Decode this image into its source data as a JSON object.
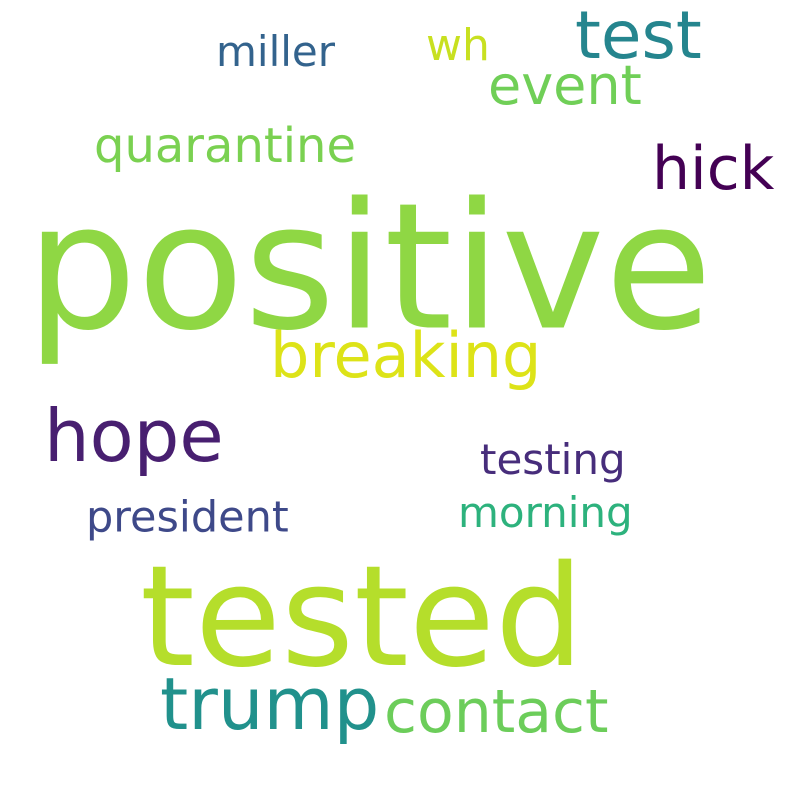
{
  "words": [
    {
      "key": "positive",
      "text": "positive",
      "color": "#8fd744"
    },
    {
      "key": "tested",
      "text": "tested",
      "color": "#b5de2b"
    },
    {
      "key": "hope",
      "text": "hope",
      "color": "#481f70"
    },
    {
      "key": "trump",
      "text": "trump",
      "color": "#21918c"
    },
    {
      "key": "breaking",
      "text": "breaking",
      "color": "#dde318"
    },
    {
      "key": "contact",
      "text": "contact",
      "color": "#6ccd5a"
    },
    {
      "key": "test",
      "text": "test",
      "color": "#25858e"
    },
    {
      "key": "hick",
      "text": "hick",
      "color": "#440154"
    },
    {
      "key": "event",
      "text": "event",
      "color": "#70cf57"
    },
    {
      "key": "quarantine",
      "text": "quarantine",
      "color": "#7ad151"
    },
    {
      "key": "miller",
      "text": "miller",
      "color": "#33638d"
    },
    {
      "key": "wh",
      "text": "wh",
      "color": "#c8e020"
    },
    {
      "key": "testing",
      "text": "testing",
      "color": "#472d7b"
    },
    {
      "key": "president",
      "text": "president",
      "color": "#3e4989"
    },
    {
      "key": "morning",
      "text": "morning",
      "color": "#2db27d"
    }
  ]
}
